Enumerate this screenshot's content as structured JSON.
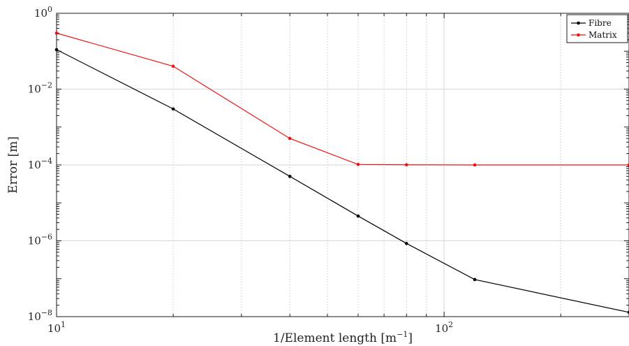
{
  "chart_data": {
    "type": "line",
    "title": "",
    "xlabel": "1/Element length [m",
    "xlabel_sup": "−1",
    "xlabel_suffix": "]",
    "ylabel": "Error [m]",
    "x_scale": "log",
    "y_scale": "log",
    "xlim": [
      10,
      300
    ],
    "ylim": [
      1e-08,
      1
    ],
    "x_ticks": [
      {
        "value": 10,
        "base": "10",
        "exp": "1"
      },
      {
        "value": 100,
        "base": "10",
        "exp": "2"
      }
    ],
    "y_ticks": [
      {
        "value": 1e-08,
        "base": "10",
        "exp": "−8"
      },
      {
        "value": 1e-06,
        "base": "10",
        "exp": "−6"
      },
      {
        "value": 0.0001,
        "base": "10",
        "exp": "−4"
      },
      {
        "value": 0.01,
        "base": "10",
        "exp": "−2"
      },
      {
        "value": 1,
        "base": "10",
        "exp": "0"
      }
    ],
    "grid": true,
    "legend": "top-right",
    "series": [
      {
        "name": "Fibre",
        "color": "#000000",
        "x": [
          10,
          20,
          40,
          60,
          80,
          120,
          300
        ],
        "y": [
          0.11,
          0.003,
          5e-05,
          4.5e-06,
          8.5e-07,
          9.5e-08,
          1.3e-08
        ]
      },
      {
        "name": "Matrix",
        "color": "#ee1111",
        "x": [
          10,
          20,
          40,
          60,
          80,
          120,
          300
        ],
        "y": [
          0.3,
          0.04,
          0.0005,
          0.000103,
          0.000101,
          0.0001,
          0.0001
        ]
      }
    ]
  }
}
